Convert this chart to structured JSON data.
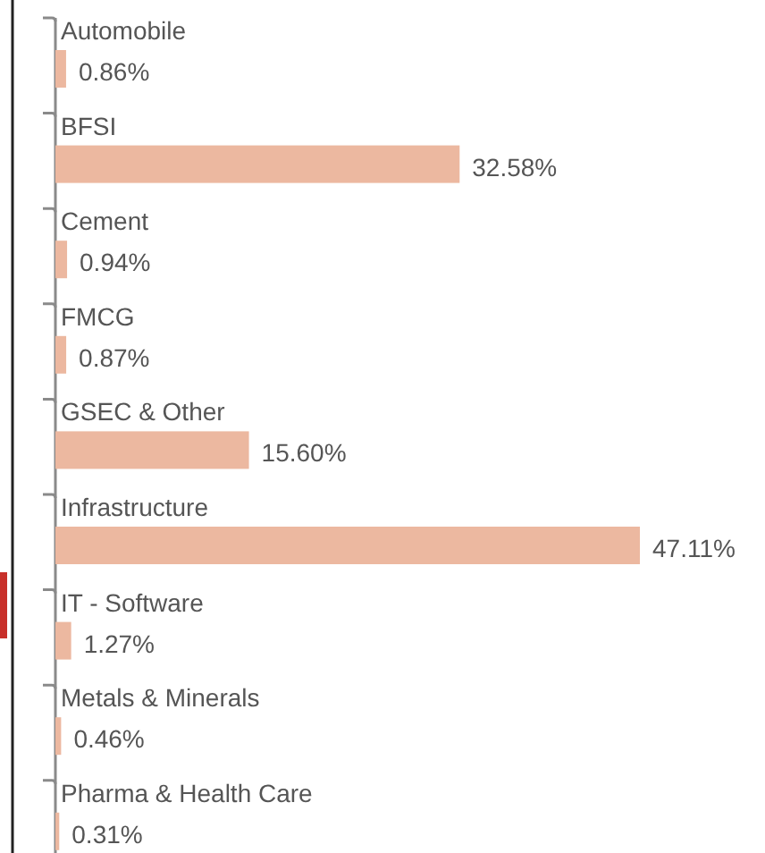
{
  "chart_data": {
    "type": "bar",
    "orientation": "horizontal",
    "categories": [
      "Automobile",
      "BFSI",
      "Cement",
      "FMCG",
      "GSEC & Other",
      "Infrastructure",
      "IT - Software",
      "Metals & Minerals",
      "Pharma & Health Care"
    ],
    "values": [
      0.86,
      32.58,
      0.94,
      0.87,
      15.6,
      47.11,
      1.27,
      0.46,
      0.31
    ],
    "value_labels": [
      "0.86%",
      "32.58%",
      "0.94%",
      "0.87%",
      "15.60%",
      "47.11%",
      "1.27%",
      "0.46%",
      "0.31%"
    ],
    "color": "#ecb8a0"
  }
}
